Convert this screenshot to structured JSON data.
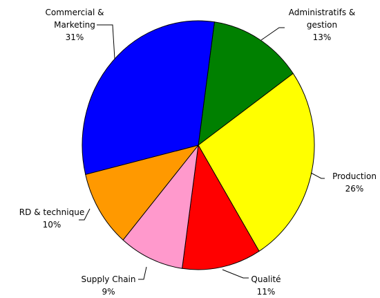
{
  "chart_data": {
    "type": "pie",
    "categories": [
      "Administratifs & gestion",
      "Production",
      "Qualité",
      "Supply Chain",
      "RD & technique",
      "Commercial & Marketing"
    ],
    "values": [
      13,
      26,
      11,
      9,
      10,
      31
    ],
    "value_labels": [
      "13%",
      "26%",
      "11%",
      "9%",
      "10%",
      "31%"
    ],
    "colors": [
      "#008000",
      "#ffff00",
      "#ff0000",
      "#ff99cc",
      "#ff9900",
      "#0000ff"
    ]
  }
}
